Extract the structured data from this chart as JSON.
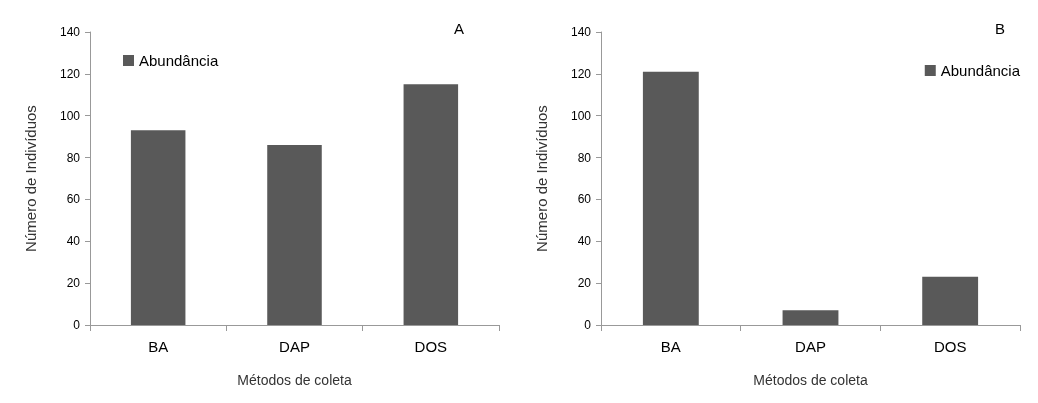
{
  "chart_data": [
    {
      "type": "bar",
      "title": "A",
      "xlabel": "Métodos de coleta",
      "ylabel": "Número de Indivíduos",
      "categories": [
        "BA",
        "DAP",
        "DOS"
      ],
      "series": [
        {
          "name": "Abundância",
          "color": "#595959",
          "values": [
            93,
            86,
            115
          ]
        }
      ],
      "ylim": [
        0,
        140
      ],
      "yticks": [
        0,
        20,
        40,
        60,
        80,
        100,
        120,
        140
      ],
      "grid": false,
      "legend": "top left"
    },
    {
      "type": "bar",
      "title": "B",
      "xlabel": "Métodos de coleta",
      "ylabel": "Número de Indivíduos",
      "categories": [
        "BA",
        "DAP",
        "DOS"
      ],
      "series": [
        {
          "name": "Abundância",
          "color": "#595959",
          "values": [
            121,
            7,
            23
          ]
        }
      ],
      "ylim": [
        0,
        140
      ],
      "yticks": [
        0,
        20,
        40,
        60,
        80,
        100,
        120,
        140
      ],
      "grid": false,
      "legend": "top right"
    }
  ]
}
